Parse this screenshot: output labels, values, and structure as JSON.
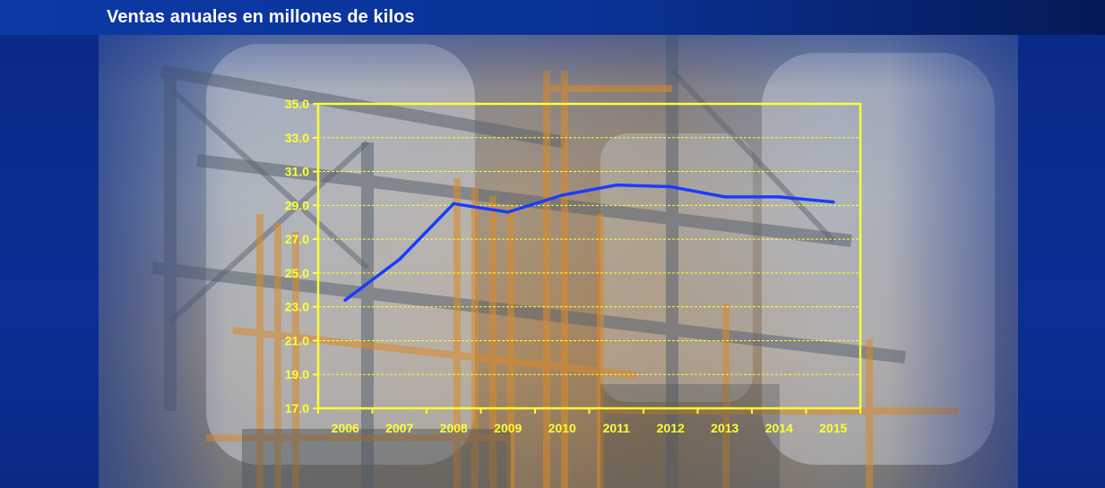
{
  "header": {
    "title": "Ventas anuales en millones de kilos"
  },
  "colors": {
    "axis": "#ffff33",
    "line": "#1a3cff",
    "title_bar": "#0a3296",
    "background": "#0a2a86"
  },
  "chart_data": {
    "type": "line",
    "title": "",
    "xlabel": "",
    "ylabel": "",
    "x": [
      "2006",
      "2007",
      "2008",
      "2009",
      "2010",
      "2011",
      "2012",
      "2013",
      "2014",
      "2015"
    ],
    "y_ticks": [
      "17.0",
      "19.0",
      "21.0",
      "23.0",
      "25.0",
      "27.0",
      "29.0",
      "31.0",
      "33.0",
      "35.0"
    ],
    "ylim": [
      17,
      35
    ],
    "grid": true,
    "series": [
      {
        "values": [
          23.4,
          25.8,
          29.1,
          28.6,
          29.6,
          30.2,
          30.1,
          29.5,
          29.5,
          29.2
        ]
      }
    ]
  }
}
